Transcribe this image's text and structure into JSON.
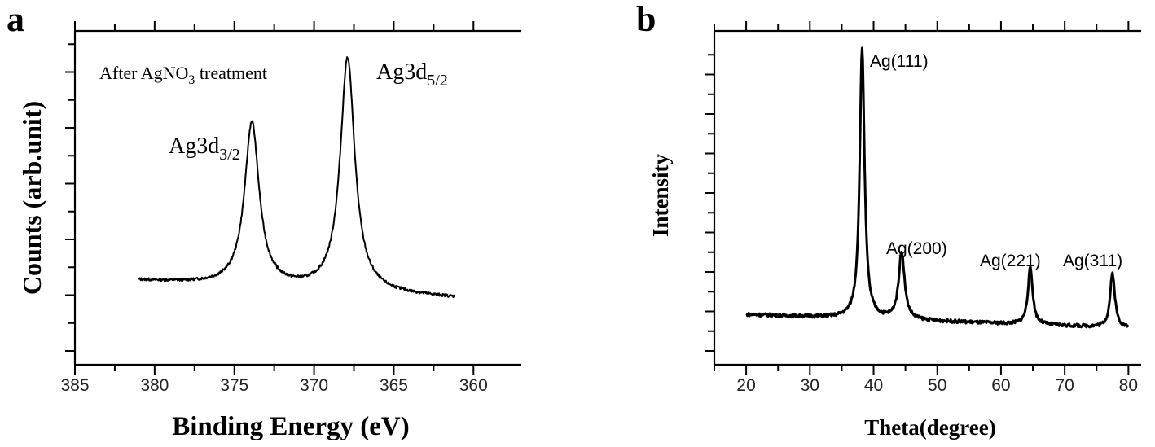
{
  "chart_data": [
    {
      "panel": "a",
      "type": "line",
      "xlabel": "Binding Energy (eV)",
      "ylabel": "Counts (arb.unit)",
      "xlim": [
        385,
        357
      ],
      "x_reversed": true,
      "x_ticks": [
        385,
        380,
        375,
        370,
        365,
        360
      ],
      "grid": false,
      "annotations": [
        {
          "id": "treatment",
          "parts": [
            [
              "After AgNO",
              "normal"
            ],
            [
              "3",
              "sub"
            ],
            [
              " treatment",
              "normal"
            ]
          ]
        },
        {
          "id": "ag3d52",
          "parts": [
            [
              "Ag3d",
              "normal"
            ],
            [
              "5/2",
              "sub"
            ]
          ]
        },
        {
          "id": "ag3d32",
          "parts": [
            [
              "Ag3d",
              "normal"
            ],
            [
              "3/2",
              "sub"
            ]
          ]
        }
      ],
      "series": [
        {
          "peaks": [
            {
              "center": 373.9,
              "height": 0.7,
              "width": 0.55
            },
            {
              "center": 367.9,
              "height": 1.0,
              "width": 0.55
            }
          ],
          "baseline_start": 0.075,
          "baseline_end": 0.0,
          "x_start": 381.0,
          "x_end": 361.2
        }
      ]
    },
    {
      "panel": "b",
      "type": "line",
      "xlabel": "Theta(degree)",
      "ylabel": "Intensity",
      "xlim": [
        15,
        82
      ],
      "x_ticks": [
        20,
        30,
        40,
        50,
        60,
        70,
        80
      ],
      "grid": false,
      "annotations": [
        {
          "id": "ag111",
          "parts": [
            [
              "Ag(111)",
              "normal"
            ]
          ]
        },
        {
          "id": "ag200",
          "parts": [
            [
              "Ag(200)",
              "normal"
            ]
          ]
        },
        {
          "id": "ag221",
          "parts": [
            [
              "Ag(221)",
              "normal"
            ]
          ]
        },
        {
          "id": "ag311",
          "parts": [
            [
              "Ag(311)",
              "normal"
            ]
          ]
        }
      ],
      "series": [
        {
          "peaks": [
            {
              "center": 38.2,
              "height": 1.0,
              "width": 0.45
            },
            {
              "center": 44.4,
              "height": 0.25,
              "width": 0.55
            },
            {
              "center": 64.6,
              "height": 0.21,
              "width": 0.45
            },
            {
              "center": 77.5,
              "height": 0.2,
              "width": 0.45
            }
          ],
          "baseline_start": 0.05,
          "baseline_end": 0.0,
          "x_start": 20.0,
          "x_end": 80.0
        }
      ]
    }
  ],
  "labels": {
    "panel_a": "a",
    "panel_b": "b"
  }
}
